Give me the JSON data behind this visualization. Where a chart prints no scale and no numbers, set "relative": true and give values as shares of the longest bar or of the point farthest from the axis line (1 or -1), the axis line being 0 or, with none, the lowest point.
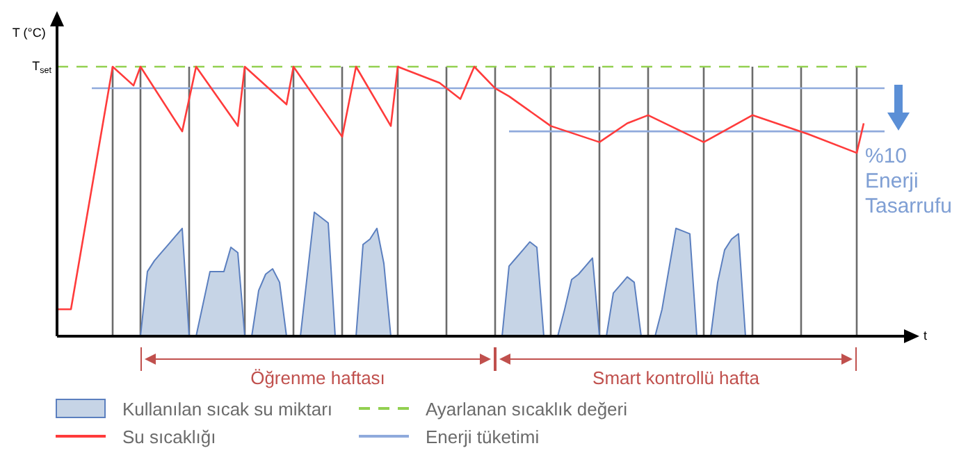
{
  "chart_data": {
    "type": "line",
    "relative": true,
    "xlabel": "t",
    "ylabel": "T (°C)",
    "marker": "none",
    "legend": "bottom",
    "grid": "x",
    "categories": [
      null,
      null,
      null,
      null,
      null,
      null,
      null,
      null,
      null,
      null,
      null,
      null,
      null,
      null,
      null,
      null,
      null,
      null,
      null,
      null,
      null,
      null,
      null,
      null,
      null,
      null,
      null,
      null,
      null,
      null,
      null,
      null,
      null,
      null,
      null,
      null,
      null,
      null,
      null,
      null,
      null,
      null,
      null,
      null,
      null,
      null,
      null,
      null,
      null,
      null,
      null,
      null,
      null,
      null,
      null,
      null,
      null,
      null,
      null,
      null,
      null,
      null,
      null,
      null,
      null,
      null,
      null,
      null,
      null,
      null,
      null,
      null,
      null,
      null,
      null,
      null,
      null,
      null,
      null,
      null,
      null,
      null,
      null,
      null,
      null,
      null,
      null,
      null,
      null,
      null,
      null,
      null,
      null,
      null,
      null,
      null,
      null,
      null,
      null,
      null,
      null,
      null,
      null,
      null,
      null,
      null,
      null,
      null,
      null,
      null,
      null,
      null,
      null,
      null,
      null,
      null,
      null,
      null,
      null,
      null,
      null,
      null,
      null
    ],
    "series": [
      {
        "name": "Kullanılan sıcak su miktarı",
        "type": "area",
        "color": "#c6d4e6",
        "values": [
          null,
          null,
          null,
          null,
          null,
          null,
          null,
          null,
          null,
          null,
          null,
          null,
          0,
          0.24,
          0.28,
          0.31,
          0.34,
          0.37,
          0.4,
          0,
          0,
          0.12,
          0.24,
          0.24,
          0.24,
          0.33,
          0.31,
          0,
          0,
          0.17,
          0.23,
          0.25,
          0.2,
          0,
          null,
          0,
          0.23,
          0.46,
          0.44,
          0.42,
          0,
          null,
          null,
          0,
          0.34,
          0.36,
          0.4,
          0.27,
          0,
          null,
          null,
          null,
          null,
          null,
          null,
          null,
          null,
          null,
          null,
          null,
          null,
          null,
          null,
          null,
          0,
          0.26,
          0.29,
          0.32,
          0.35,
          0.33,
          0,
          null,
          0,
          0.1,
          0.21,
          0.23,
          0.26,
          0.29,
          0,
          0,
          0.16,
          0.19,
          0.22,
          0.2,
          0,
          null,
          0,
          0.1,
          0.25,
          0.4,
          0.39,
          0.38,
          0,
          null,
          0,
          0.2,
          0.32,
          0.36,
          0.38,
          0,
          null,
          null,
          null,
          null,
          null,
          null,
          null,
          null,
          null,
          null,
          null,
          null,
          null,
          null,
          null,
          null,
          null,
          null,
          null,
          null,
          null,
          null,
          null
        ]
      },
      {
        "name": "Su sıcaklığı",
        "type": "line",
        "color": "#ff3b3b",
        "values": [
          0.1,
          null,
          0.1,
          null,
          null,
          null,
          null,
          null,
          1.0,
          null,
          null,
          0.93,
          1.0,
          null,
          null,
          null,
          null,
          null,
          0.76,
          null,
          1.0,
          null,
          null,
          null,
          null,
          null,
          0.78,
          1.0,
          null,
          null,
          null,
          null,
          null,
          0.86,
          1.0,
          null,
          null,
          null,
          null,
          null,
          null,
          0.74,
          null,
          1.0,
          null,
          null,
          null,
          null,
          0.78,
          1.0,
          null,
          null,
          null,
          null,
          null,
          0.94,
          null,
          null,
          0.88,
          null,
          1.0,
          null,
          null,
          0.92,
          null,
          0.89,
          null,
          null,
          null,
          null,
          null,
          0.78,
          null,
          null,
          null,
          null,
          null,
          null,
          0.72,
          null,
          null,
          null,
          0.79,
          null,
          null,
          0.82,
          null,
          null,
          null,
          null,
          null,
          null,
          null,
          0.72,
          null,
          null,
          null,
          null,
          null,
          null,
          0.82,
          null,
          null,
          null,
          null,
          null,
          null,
          null,
          0.75,
          null,
          null,
          null,
          null,
          null,
          null,
          0.68,
          0.79,
          null,
          null,
          null,
          null,
          null,
          null
        ]
      },
      {
        "name": "Ayarlanan sıcaklık değeri",
        "type": "line",
        "color": "#92d050",
        "line_style": "dashed",
        "values": [
          1,
          null,
          null,
          null,
          null,
          null,
          null,
          null,
          null,
          null,
          null,
          null,
          null,
          null,
          null,
          null,
          null,
          null,
          null,
          null,
          null,
          null,
          null,
          null,
          null,
          null,
          null,
          null,
          null,
          null,
          null,
          null,
          null,
          null,
          null,
          null,
          null,
          null,
          null,
          null,
          null,
          null,
          null,
          null,
          null,
          null,
          null,
          null,
          null,
          null,
          null,
          null,
          null,
          null,
          null,
          null,
          null,
          null,
          null,
          null,
          null,
          null,
          null,
          null,
          null,
          null,
          null,
          null,
          null,
          null,
          null,
          null,
          null,
          null,
          null,
          null,
          null,
          null,
          null,
          null,
          null,
          null,
          null,
          null,
          null,
          null,
          null,
          null,
          null,
          null,
          null,
          null,
          null,
          null,
          null,
          null,
          null,
          null,
          null,
          null,
          null,
          null,
          null,
          null,
          null,
          null,
          null,
          null,
          null,
          null,
          null,
          null,
          null,
          null,
          null,
          null,
          null,
          1,
          null,
          null,
          null,
          null,
          null
        ]
      },
      {
        "name": "Enerji tüketimi",
        "type": "line",
        "color": "#8faadc",
        "values": [
          null,
          null,
          null,
          null,
          null,
          0.92,
          null,
          null,
          null,
          null,
          null,
          null,
          null,
          null,
          null,
          null,
          null,
          null,
          null,
          null,
          null,
          null,
          null,
          null,
          null,
          null,
          null,
          null,
          null,
          null,
          null,
          null,
          null,
          null,
          null,
          null,
          null,
          null,
          null,
          null,
          null,
          null,
          null,
          null,
          null,
          null,
          null,
          null,
          null,
          null,
          null,
          null,
          null,
          null,
          null,
          null,
          null,
          null,
          null,
          null,
          null,
          null,
          null,
          null,
          null,
          null,
          null,
          null,
          null,
          null,
          null,
          null,
          null,
          null,
          null,
          null,
          null,
          null,
          null,
          null,
          null,
          null,
          null,
          null,
          null,
          null,
          null,
          null,
          null,
          null,
          null,
          null,
          null,
          null,
          null,
          null,
          null,
          null,
          null,
          null,
          null,
          null,
          null,
          null,
          null,
          null,
          null,
          null,
          null,
          null,
          null,
          null,
          null,
          null,
          null,
          null,
          null,
          null,
          null,
          0.92,
          null,
          null,
          null
        ]
      },
      {
        "type": "line",
        "color": "#8faadc",
        "values": [
          null,
          null,
          null,
          null,
          null,
          null,
          null,
          null,
          null,
          null,
          null,
          null,
          null,
          null,
          null,
          null,
          null,
          null,
          null,
          null,
          null,
          null,
          null,
          null,
          null,
          null,
          null,
          null,
          null,
          null,
          null,
          null,
          null,
          null,
          null,
          null,
          null,
          null,
          null,
          null,
          null,
          null,
          null,
          null,
          null,
          null,
          null,
          null,
          null,
          null,
          null,
          null,
          null,
          null,
          null,
          null,
          null,
          null,
          null,
          null,
          null,
          null,
          null,
          null,
          null,
          0.76,
          null,
          null,
          null,
          null,
          null,
          null,
          null,
          null,
          null,
          null,
          null,
          null,
          null,
          null,
          null,
          null,
          null,
          null,
          null,
          null,
          null,
          null,
          null,
          null,
          null,
          null,
          null,
          null,
          null,
          null,
          null,
          null,
          null,
          null,
          null,
          null,
          null,
          null,
          null,
          null,
          null,
          null,
          null,
          null,
          null,
          null,
          null,
          null,
          null,
          null,
          null,
          null,
          null,
          0.76,
          null,
          null,
          null
        ]
      }
    ],
    "annotations": [
      "T$_{set}$",
      "%10\nEnerji\nTasarrufu",
      "Öğrenme haftası",
      "Smart kontrollü hafta"
    ]
  }
}
